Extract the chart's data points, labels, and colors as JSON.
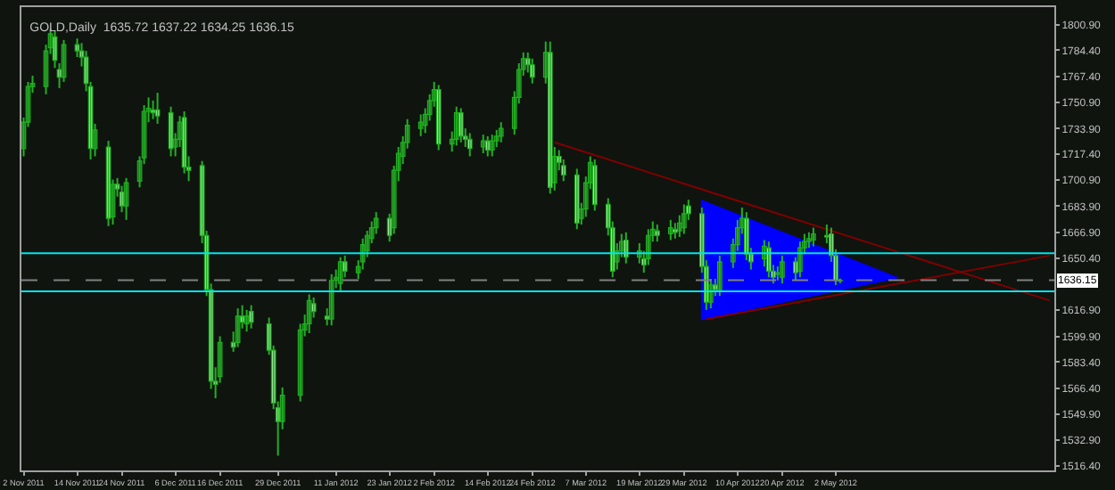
{
  "chart_data": {
    "type": "candlestick",
    "title": "GOLD,Daily  1635.72 1637.22 1634.25 1636.15",
    "color": "#22b022",
    "x": [
      "2011-11-02",
      "2011-11-03",
      "2011-11-04",
      "2011-11-07",
      "2011-11-08",
      "2011-11-09",
      "2011-11-10",
      "2011-11-11",
      "2011-11-14",
      "2011-11-15",
      "2011-11-16",
      "2011-11-17",
      "2011-11-18",
      "2011-11-21",
      "2011-11-22",
      "2011-11-23",
      "2011-11-24",
      "2011-11-25",
      "2011-11-28",
      "2011-11-29",
      "2011-11-30",
      "2011-12-01",
      "2011-12-02",
      "2011-12-05",
      "2011-12-06",
      "2011-12-07",
      "2011-12-08",
      "2011-12-09",
      "2011-12-12",
      "2011-12-13",
      "2011-12-14",
      "2011-12-15",
      "2011-12-16",
      "2011-12-19",
      "2011-12-20",
      "2011-12-21",
      "2011-12-22",
      "2011-12-23",
      "2011-12-27",
      "2011-12-28",
      "2011-12-29",
      "2011-12-30",
      "2012-01-03",
      "2012-01-04",
      "2012-01-05",
      "2012-01-06",
      "2012-01-09",
      "2012-01-10",
      "2012-01-11",
      "2012-01-12",
      "2012-01-13",
      "2012-01-16",
      "2012-01-17",
      "2012-01-18",
      "2012-01-19",
      "2012-01-20",
      "2012-01-23",
      "2012-01-24",
      "2012-01-25",
      "2012-01-26",
      "2012-01-27",
      "2012-01-30",
      "2012-01-31",
      "2012-02-01",
      "2012-02-02",
      "2012-02-03",
      "2012-02-06",
      "2012-02-07",
      "2012-02-08",
      "2012-02-09",
      "2012-02-10",
      "2012-02-13",
      "2012-02-14",
      "2012-02-15",
      "2012-02-16",
      "2012-02-17",
      "2012-02-20",
      "2012-02-21",
      "2012-02-22",
      "2012-02-23",
      "2012-02-24",
      "2012-02-27",
      "2012-02-28",
      "2012-02-29",
      "2012-03-01",
      "2012-03-02",
      "2012-03-05",
      "2012-03-06",
      "2012-03-07",
      "2012-03-08",
      "2012-03-09",
      "2012-03-12",
      "2012-03-13",
      "2012-03-14",
      "2012-03-15",
      "2012-03-16",
      "2012-03-19",
      "2012-03-20",
      "2012-03-21",
      "2012-03-22",
      "2012-03-23",
      "2012-03-26",
      "2012-03-27",
      "2012-03-28",
      "2012-03-29",
      "2012-03-30",
      "2012-04-02",
      "2012-04-03",
      "2012-04-04",
      "2012-04-05",
      "2012-04-06",
      "2012-04-09",
      "2012-04-10",
      "2012-04-11",
      "2012-04-12",
      "2012-04-13",
      "2012-04-16",
      "2012-04-17",
      "2012-04-18",
      "2012-04-19",
      "2012-04-20",
      "2012-04-23",
      "2012-04-24",
      "2012-04-25",
      "2012-04-26",
      "2012-04-27",
      "2012-04-30",
      "2012-05-01",
      "2012-05-02",
      "2012-05-03"
    ],
    "ohlc": [
      [
        1721,
        1741,
        1716,
        1738
      ],
      [
        1738,
        1764,
        1735,
        1761
      ],
      [
        1761,
        1768,
        1757,
        1763
      ],
      [
        1761,
        1788,
        1756,
        1784
      ],
      [
        1786,
        1798,
        1782,
        1795
      ],
      [
        1793,
        1797,
        1773,
        1778
      ],
      [
        1772,
        1776,
        1760,
        1767
      ],
      [
        1767,
        1791,
        1764,
        1788
      ],
      [
        1788,
        1792,
        1780,
        1784
      ],
      [
        1784,
        1789,
        1774,
        1780
      ],
      [
        1780,
        1784,
        1758,
        1763
      ],
      [
        1761,
        1764,
        1714,
        1721
      ],
      [
        1721,
        1737,
        1716,
        1733
      ],
      [
        1722,
        1726,
        1671,
        1676
      ],
      [
        1677,
        1701,
        1672,
        1698
      ],
      [
        1698,
        1702,
        1690,
        1695
      ],
      [
        1693,
        1697,
        1680,
        1684
      ],
      [
        1684,
        1702,
        1675,
        1699
      ],
      [
        1700,
        1716,
        1696,
        1713
      ],
      [
        1715,
        1749,
        1711,
        1745
      ],
      [
        1745,
        1754,
        1738,
        1747
      ],
      [
        1746,
        1752,
        1740,
        1744
      ],
      [
        1746,
        1757,
        1737,
        1742
      ],
      [
        1744,
        1748,
        1716,
        1721
      ],
      [
        1722,
        1731,
        1716,
        1727
      ],
      [
        1727,
        1742,
        1722,
        1738
      ],
      [
        1741,
        1745,
        1705,
        1709
      ],
      [
        1709,
        1716,
        1700,
        1707
      ],
      [
        1710,
        1713,
        1660,
        1665
      ],
      [
        1665,
        1668,
        1626,
        1630
      ],
      [
        1630,
        1634,
        1566,
        1571
      ],
      [
        1571,
        1580,
        1560,
        1569
      ],
      [
        1574,
        1600,
        1570,
        1596
      ],
      [
        1596,
        1603,
        1590,
        1593
      ],
      [
        1596,
        1618,
        1593,
        1613
      ],
      [
        1613,
        1620,
        1605,
        1609
      ],
      [
        1608,
        1617,
        1603,
        1613
      ],
      [
        1616,
        1620,
        1605,
        1609
      ],
      [
        1608,
        1612,
        1588,
        1591
      ],
      [
        1591,
        1594,
        1553,
        1557
      ],
      [
        1554,
        1558,
        1523,
        1545
      ],
      [
        1545,
        1567,
        1540,
        1562
      ],
      [
        1562,
        1608,
        1558,
        1604
      ],
      [
        1604,
        1614,
        1600,
        1608
      ],
      [
        1608,
        1627,
        1602,
        1623
      ],
      [
        1621,
        1625,
        1612,
        1616
      ],
      [
        1613,
        1618,
        1607,
        1611
      ],
      [
        1611,
        1640,
        1607,
        1636
      ],
      [
        1636,
        1643,
        1631,
        1638
      ],
      [
        1634,
        1651,
        1629,
        1648
      ],
      [
        1648,
        1652,
        1638,
        1642
      ],
      [
        1641,
        1649,
        1637,
        1645
      ],
      [
        1648,
        1663,
        1643,
        1659
      ],
      [
        1655,
        1668,
        1651,
        1665
      ],
      [
        1663,
        1674,
        1660,
        1670
      ],
      [
        1670,
        1680,
        1666,
        1676
      ],
      [
        1676,
        1679,
        1661,
        1665
      ],
      [
        1670,
        1710,
        1666,
        1707
      ],
      [
        1707,
        1722,
        1700,
        1718
      ],
      [
        1716,
        1729,
        1711,
        1725
      ],
      [
        1725,
        1740,
        1721,
        1736
      ],
      [
        1734,
        1743,
        1729,
        1738
      ],
      [
        1736,
        1747,
        1731,
        1743
      ],
      [
        1743,
        1756,
        1739,
        1752
      ],
      [
        1752,
        1764,
        1748,
        1759
      ],
      [
        1759,
        1762,
        1720,
        1724
      ],
      [
        1724,
        1732,
        1719,
        1727
      ],
      [
        1727,
        1748,
        1723,
        1744
      ],
      [
        1744,
        1747,
        1725,
        1729
      ],
      [
        1729,
        1734,
        1722,
        1727
      ],
      [
        1727,
        1731,
        1716,
        1721
      ],
      [
        1722,
        1730,
        1718,
        1726
      ],
      [
        1726,
        1729,
        1716,
        1720
      ],
      [
        1720,
        1730,
        1716,
        1726
      ],
      [
        1726,
        1733,
        1722,
        1729
      ],
      [
        1729,
        1738,
        1725,
        1734
      ],
      [
        1734,
        1758,
        1730,
        1754
      ],
      [
        1754,
        1776,
        1750,
        1772
      ],
      [
        1772,
        1783,
        1768,
        1779
      ],
      [
        1779,
        1783,
        1770,
        1775
      ],
      [
        1775,
        1779,
        1763,
        1767
      ],
      [
        1767,
        1790,
        1763,
        1783
      ],
      [
        1783,
        1790,
        1692,
        1696
      ],
      [
        1699,
        1722,
        1694,
        1716
      ],
      [
        1716,
        1720,
        1707,
        1712
      ],
      [
        1710,
        1714,
        1700,
        1704
      ],
      [
        1704,
        1708,
        1669,
        1673
      ],
      [
        1676,
        1686,
        1672,
        1682
      ],
      [
        1682,
        1703,
        1677,
        1699
      ],
      [
        1699,
        1716,
        1695,
        1712
      ],
      [
        1710,
        1714,
        1681,
        1685
      ],
      [
        1685,
        1689,
        1665,
        1670
      ],
      [
        1670,
        1674,
        1638,
        1642
      ],
      [
        1648,
        1660,
        1643,
        1655
      ],
      [
        1655,
        1666,
        1651,
        1661
      ],
      [
        1662,
        1667,
        1647,
        1651
      ],
      [
        1651,
        1660,
        1647,
        1655
      ],
      [
        1650,
        1655,
        1641,
        1646
      ],
      [
        1650,
        1669,
        1646,
        1665
      ],
      [
        1665,
        1674,
        1661,
        1669
      ],
      [
        1668,
        1672,
        1661,
        1665
      ],
      [
        1666,
        1675,
        1662,
        1670
      ],
      [
        1669,
        1673,
        1663,
        1667
      ],
      [
        1668,
        1678,
        1664,
        1673
      ],
      [
        1670,
        1685,
        1666,
        1679
      ],
      [
        1684,
        1688,
        1675,
        1679
      ],
      [
        1679,
        1683,
        1641,
        1645
      ],
      [
        1645,
        1649,
        1617,
        1622
      ],
      [
        1622,
        1637,
        1618,
        1633
      ],
      [
        1633,
        1637,
        1626,
        1630
      ],
      [
        1630,
        1652,
        1626,
        1648
      ],
      [
        1648,
        1663,
        1644,
        1659
      ],
      [
        1659,
        1675,
        1655,
        1670
      ],
      [
        1670,
        1683,
        1666,
        1676
      ],
      [
        1676,
        1680,
        1649,
        1653
      ],
      [
        1653,
        1657,
        1643,
        1648
      ],
      [
        1650,
        1662,
        1645,
        1658
      ],
      [
        1657,
        1661,
        1638,
        1642
      ],
      [
        1642,
        1646,
        1634,
        1638
      ],
      [
        1640,
        1645,
        1636,
        1641
      ],
      [
        1638,
        1652,
        1634,
        1648
      ],
      [
        1648,
        1651,
        1636,
        1641
      ],
      [
        1642,
        1661,
        1638,
        1657
      ],
      [
        1657,
        1666,
        1653,
        1661
      ],
      [
        1661,
        1667,
        1657,
        1663
      ],
      [
        1662,
        1670,
        1658,
        1666
      ],
      [
        1665,
        1672,
        1660,
        1664
      ],
      [
        1666,
        1670,
        1648,
        1652
      ],
      [
        1652,
        1656,
        1633,
        1636
      ],
      [
        1635.72,
        1637.22,
        1634.25,
        1636.15
      ]
    ],
    "series": [
      {
        "type": "area",
        "color": "#0000ff",
        "x": [
          "2012-04-02",
          "2012-04-02",
          "2012-05-16"
        ],
        "values": [
          1688,
          1611,
          1638
        ]
      },
      {
        "type": "line",
        "color": "#800000",
        "x": [
          "2012-02-29",
          "2012-06-19"
        ],
        "values": [
          1725,
          1623
        ]
      },
      {
        "type": "line",
        "color": "#800000",
        "x": [
          "2012-04-03",
          "2012-06-19"
        ],
        "values": [
          1611,
          1652
        ]
      }
    ],
    "ref_lines": [
      {
        "axis": "y",
        "value": 1653.5,
        "color": "#00e5ee"
      },
      {
        "axis": "y",
        "value": 1629.0,
        "color": "#00e5ee"
      },
      {
        "axis": "y",
        "value": 1636.15,
        "label": "1636.15",
        "color": "#808080",
        "line_style": "dashed"
      }
    ],
    "xlim": [
      "2011-11-01T12:00",
      "2012-06-20"
    ],
    "xticks": [
      {
        "value": "2011-11-02",
        "label": "2 Nov 2011"
      },
      {
        "value": "2011-11-14",
        "label": "14 Nov 2011"
      },
      {
        "value": "2011-11-24",
        "label": "24 Nov 2011"
      },
      {
        "value": "2011-12-06",
        "label": "6 Dec 2011"
      },
      {
        "value": "2011-12-16",
        "label": "16 Dec 2011"
      },
      {
        "value": "2011-12-29",
        "label": "29 Dec 2011"
      },
      {
        "value": "2012-01-11",
        "label": "11 Jan 2012"
      },
      {
        "value": "2012-01-23",
        "label": "23 Jan 2012"
      },
      {
        "value": "2012-02-02",
        "label": "2 Feb 2012"
      },
      {
        "value": "2012-02-14",
        "label": "14 Feb 2012"
      },
      {
        "value": "2012-02-24",
        "label": "24 Feb 2012"
      },
      {
        "value": "2012-03-07",
        "label": "7 Mar 2012"
      },
      {
        "value": "2012-03-19",
        "label": "19 Mar 2012"
      },
      {
        "value": "2012-03-29",
        "label": "29 Mar 2012"
      },
      {
        "value": "2012-04-10",
        "label": "10 Apr 2012"
      },
      {
        "value": "2012-04-20",
        "label": "20 Apr 2012"
      },
      {
        "value": "2012-05-02",
        "label": "2 May 2012"
      }
    ],
    "ylim": [
      1513.5,
      1812.2
    ],
    "yticks": [
      {
        "value": 1800.9,
        "label": "1800.90"
      },
      {
        "value": 1784.4,
        "label": "1784.40"
      },
      {
        "value": 1767.4,
        "label": "1767.40"
      },
      {
        "value": 1750.9,
        "label": "1750.90"
      },
      {
        "value": 1733.9,
        "label": "1733.90"
      },
      {
        "value": 1717.4,
        "label": "1717.40"
      },
      {
        "value": 1700.9,
        "label": "1700.90"
      },
      {
        "value": 1683.9,
        "label": "1683.90"
      },
      {
        "value": 1666.9,
        "label": "1666.90"
      },
      {
        "value": 1650.4,
        "label": "1650.40"
      },
      {
        "value": 1616.9,
        "label": "1616.90"
      },
      {
        "value": 1599.9,
        "label": "1599.90"
      },
      {
        "value": 1583.4,
        "label": "1583.40"
      },
      {
        "value": 1566.4,
        "label": "1566.40"
      },
      {
        "value": 1549.9,
        "label": "1549.90"
      },
      {
        "value": 1532.9,
        "label": "1532.90"
      },
      {
        "value": 1516.4,
        "label": "1516.40"
      }
    ],
    "grid": false
  }
}
